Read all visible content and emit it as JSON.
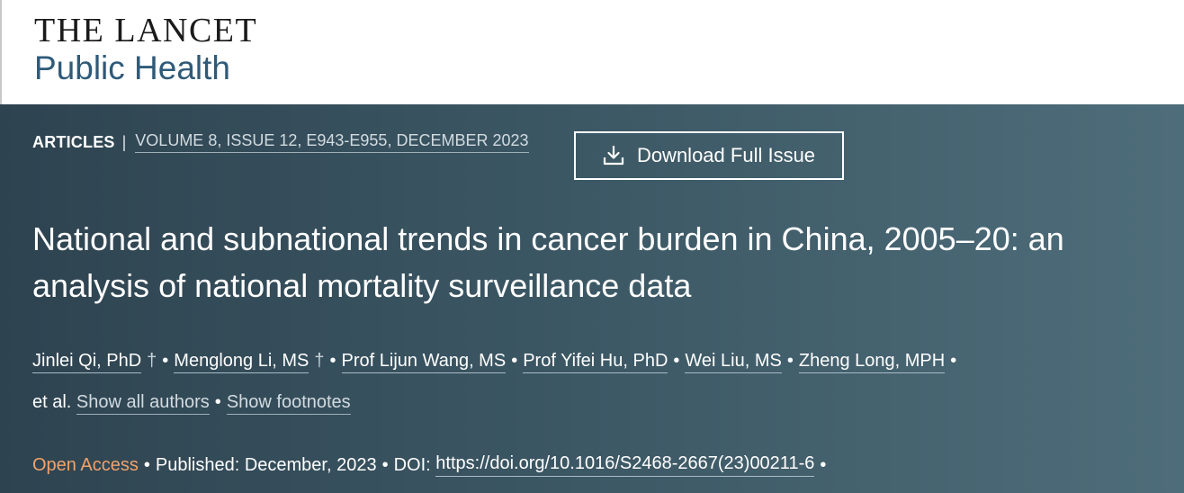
{
  "brand": {
    "line1": "THE LANCET",
    "line2": "Public Health"
  },
  "article": {
    "type": "ARTICLES",
    "separator": "|",
    "issue": "VOLUME 8, ISSUE 12, E943-E955, DECEMBER 2023",
    "download_label": "Download Full Issue",
    "title": "National and subnational trends in cancer burden in China, 2005–20: an analysis of national mortality surveillance data"
  },
  "authors": {
    "list": [
      {
        "name": "Jinlei Qi, PhD",
        "dagger": "†"
      },
      {
        "name": "Menglong Li, MS",
        "dagger": "†"
      },
      {
        "name": "Prof Lijun Wang, MS",
        "dagger": ""
      },
      {
        "name": "Prof Yifei Hu, PhD",
        "dagger": ""
      },
      {
        "name": "Wei Liu, MS",
        "dagger": ""
      },
      {
        "name": "Zheng Long, MPH",
        "dagger": ""
      }
    ],
    "et_al": "et al.",
    "show_all": "Show all authors",
    "show_footnotes": "Show footnotes",
    "bullet": "•"
  },
  "publication": {
    "open_access": "Open Access",
    "published_label": "Published:",
    "published_date": "December, 2023",
    "doi_label": "DOI:",
    "doi_url": "https://doi.org/10.1016/S2468-2667(23)00211-6"
  },
  "colors": {
    "hero_start": "#2e4350",
    "hero_end": "#4e6d7a",
    "open_access": "#f0a36b"
  },
  "icons": {
    "download": "download-icon"
  }
}
